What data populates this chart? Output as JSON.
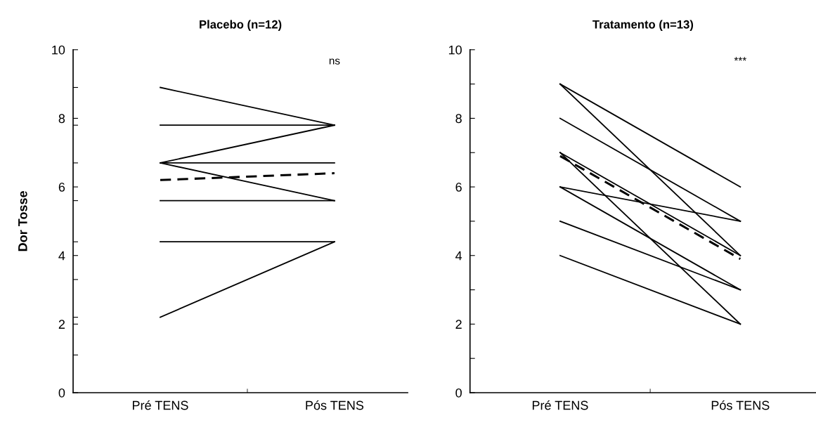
{
  "chart_data": [
    {
      "type": "line",
      "title": "Placebo (n=12)",
      "ylabel": "Dor Tosse",
      "categories": [
        "Pré TENS",
        "Pós TENS"
      ],
      "ylim": [
        0,
        10
      ],
      "yticks": [
        0,
        {
          "value": 1.1,
          "label": null
        },
        2,
        {
          "value": 2.2,
          "label": null
        },
        {
          "value": 3.3,
          "label": null
        },
        4,
        {
          "value": 4.4,
          "label": null
        },
        {
          "value": 5.6,
          "label": null
        },
        6,
        {
          "value": 6.7,
          "label": null
        },
        {
          "value": 7.8,
          "label": null
        },
        8,
        {
          "value": 8.9,
          "label": null
        },
        10
      ],
      "annotations": [
        "ns"
      ],
      "grid": false,
      "legend": false,
      "series": [
        {
          "color": "#000000",
          "values": [
            8.9,
            7.8
          ]
        },
        {
          "color": "#000000",
          "values": [
            7.8,
            7.8
          ]
        },
        {
          "color": "#000000",
          "values": [
            6.7,
            7.8
          ]
        },
        {
          "color": "#000000",
          "values": [
            6.7,
            6.7
          ]
        },
        {
          "color": "#000000",
          "values": [
            6.7,
            5.6
          ]
        },
        {
          "color": "#000000",
          "values": [
            5.6,
            5.6
          ]
        },
        {
          "color": "#000000",
          "values": [
            4.4,
            4.4
          ]
        },
        {
          "color": "#000000",
          "values": [
            2.2,
            4.4
          ]
        },
        {
          "color": "#000000",
          "values": [
            6.2,
            6.4
          ],
          "line_style": "dashed"
        }
      ]
    },
    {
      "type": "line",
      "title": "Tratamento (n=13)",
      "categories": [
        "Pré TENS",
        "Pós TENS"
      ],
      "ylim": [
        0,
        10
      ],
      "yticks": [
        0,
        {
          "value": 1,
          "label": null
        },
        2,
        {
          "value": 3,
          "label": null
        },
        4,
        {
          "value": 5,
          "label": null
        },
        6,
        {
          "value": 7,
          "label": null
        },
        8,
        {
          "value": 9,
          "label": null
        },
        10
      ],
      "annotations": [
        "***"
      ],
      "grid": false,
      "legend": false,
      "series": [
        {
          "color": "#000000",
          "values": [
            9,
            6
          ]
        },
        {
          "color": "#000000",
          "values": [
            9,
            4
          ]
        },
        {
          "color": "#000000",
          "values": [
            8,
            5
          ]
        },
        {
          "color": "#000000",
          "values": [
            7,
            4
          ]
        },
        {
          "color": "#000000",
          "values": [
            7,
            2
          ]
        },
        {
          "color": "#000000",
          "values": [
            6,
            5
          ]
        },
        {
          "color": "#000000",
          "values": [
            6,
            3
          ]
        },
        {
          "color": "#000000",
          "values": [
            5,
            3
          ]
        },
        {
          "color": "#000000",
          "values": [
            4,
            2
          ]
        },
        {
          "color": "#000000",
          "values": [
            6.9,
            3.9
          ],
          "line_style": "dashed"
        }
      ]
    }
  ]
}
